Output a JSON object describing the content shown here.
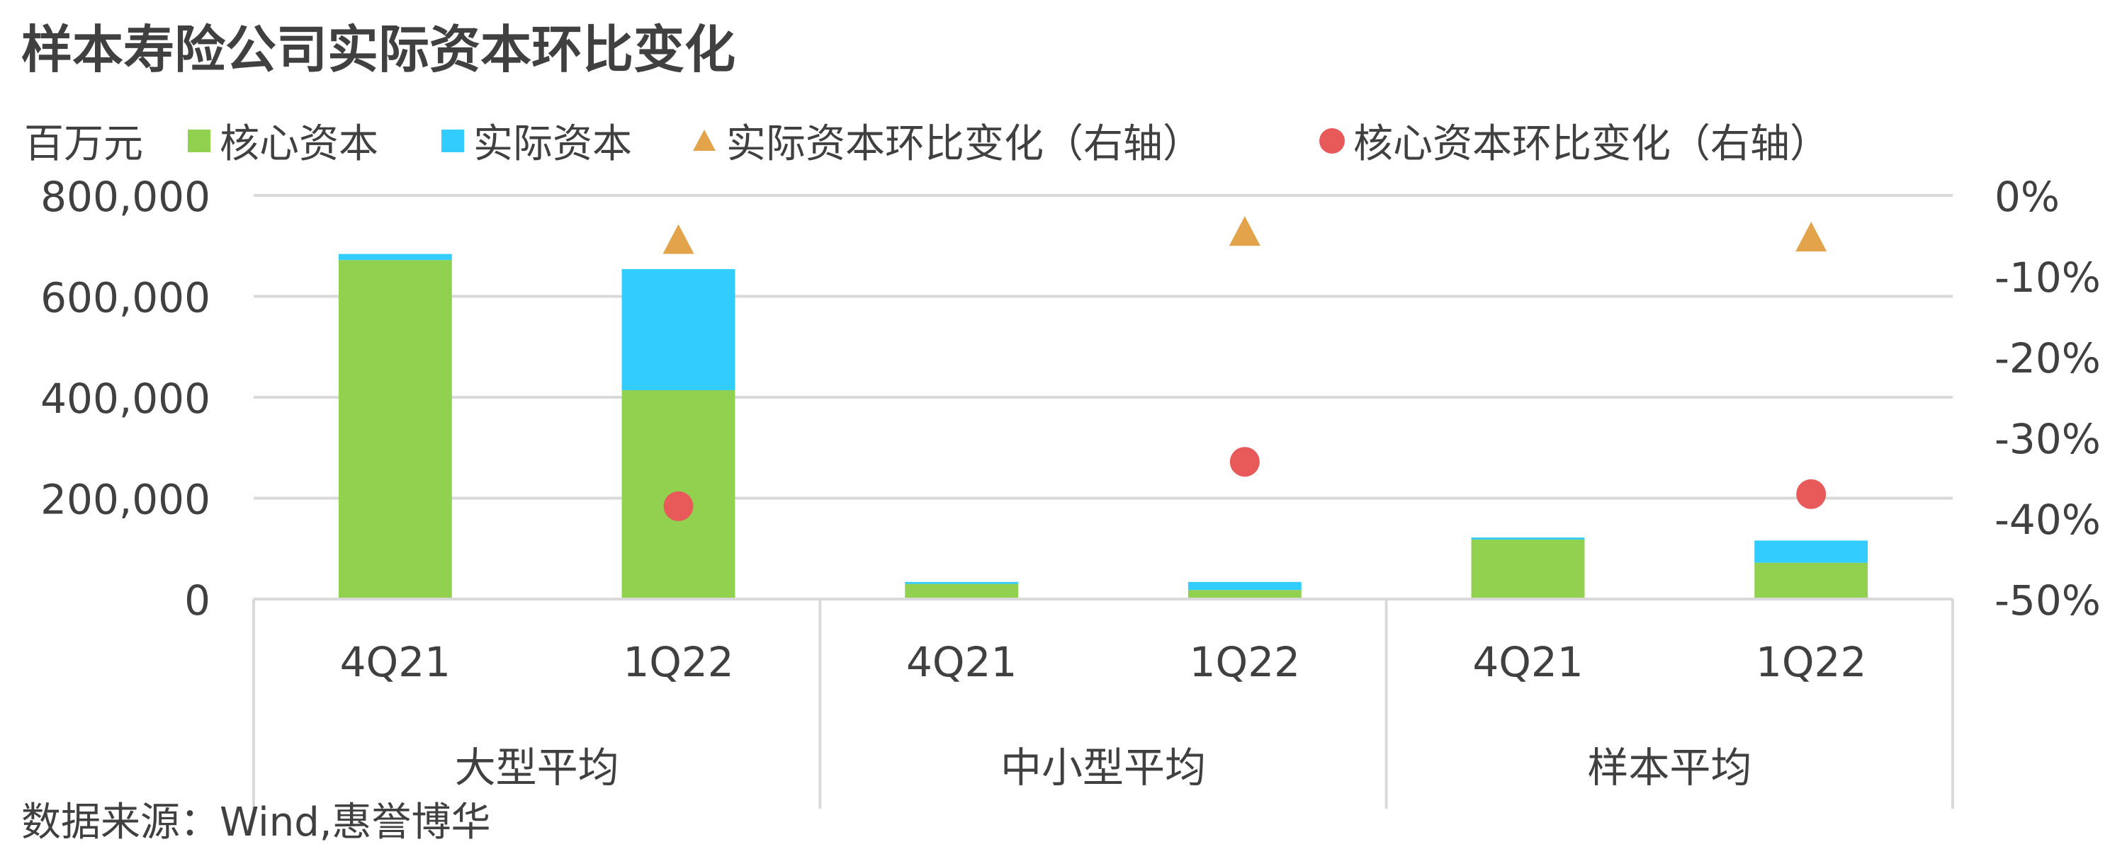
{
  "chart_data": {
    "type": "bar",
    "title": "样本寿险公司实际资本环比变化",
    "y_unit_label": "百万元",
    "source": "数据来源：Wind,惠誉博华",
    "groups": [
      "大型平均",
      "中小型平均",
      "样本平均"
    ],
    "categories": [
      "4Q21",
      "1Q22",
      "4Q21",
      "1Q22",
      "4Q21",
      "1Q22"
    ],
    "ylim": [
      0,
      800000
    ],
    "y_ticks": [
      "800,000",
      "600,000",
      "400,000",
      "200,000",
      "0"
    ],
    "y2lim": [
      -50,
      0
    ],
    "y2_ticks": [
      "0%",
      "-10%",
      "-20%",
      "-30%",
      "-40%",
      "-50%"
    ],
    "series": [
      {
        "name": "核心资本",
        "type": "bar",
        "stack": true,
        "color": "#92D050",
        "values": [
          672000,
          414000,
          30000,
          18000,
          118000,
          72000
        ]
      },
      {
        "name": "实际资本",
        "type": "bar",
        "stack": true,
        "color": "#33CCFF",
        "values": [
          12000,
          240000,
          4000,
          16000,
          4000,
          44000
        ]
      },
      {
        "name": "实际资本环比变化（右轴）",
        "type": "scatter",
        "marker": "triangle",
        "color": "#E3A34B",
        "axis": "right",
        "values": [
          null,
          -5.5,
          null,
          -4.5,
          null,
          -5.2
        ]
      },
      {
        "name": "核心资本环比变化（右轴）",
        "type": "scatter",
        "marker": "circle",
        "color": "#E8595A",
        "axis": "right",
        "values": [
          null,
          -38.5,
          null,
          -33.0,
          null,
          -37.0
        ]
      }
    ],
    "legend_position": "top-left",
    "grid": true
  }
}
